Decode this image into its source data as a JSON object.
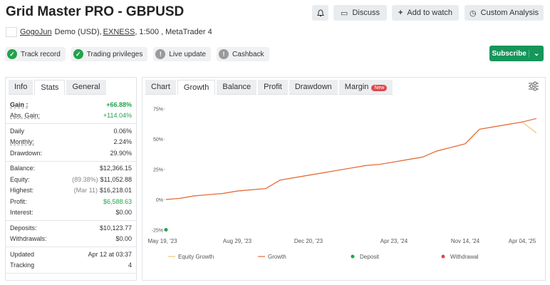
{
  "header": {
    "title": "Grid Master PRO - GBPUSD",
    "buttons": [
      "Discuss",
      "Add to watch",
      "Custom Analysis"
    ]
  },
  "account": {
    "owner": "GogoJun",
    "details_1": "Demo (USD),",
    "broker": "EXNESS",
    "details_2": ", 1:500 , MetaTrader 4"
  },
  "badges": [
    {
      "label": "Track record",
      "ok": true
    },
    {
      "label": "Trading privileges",
      "ok": true
    },
    {
      "label": "Live update",
      "ok": false
    },
    {
      "label": "Cashback",
      "ok": false
    }
  ],
  "subscribe": "Subscribe",
  "stats_tabs": {
    "tabs": [
      "Info",
      "Stats",
      "General"
    ],
    "active": 1
  },
  "stats": [
    [
      {
        "label": "Gain :",
        "value": "+66.88%",
        "color": "#22a34a"
      },
      {
        "label": "Abs. Gain:",
        "value": "+114.04%",
        "color": "#22a34a"
      }
    ],
    [
      {
        "label": "Daily",
        "value": "0.06%"
      },
      {
        "label": "Monthly:",
        "value": "2.24%"
      },
      {
        "label": "Drawdown:",
        "value": "29.90%"
      }
    ],
    [
      {
        "label": "Balance:",
        "value": "$12,366.15"
      },
      {
        "label": "Equity:",
        "note": "(89.38%)",
        "value": "$11,052.88"
      },
      {
        "label": "Highest:",
        "note": "(Mar 11)",
        "value": "$16,218.01"
      },
      {
        "label": "Profit:",
        "value": "$6,588.63",
        "color": "#22a34a"
      },
      {
        "label": "Interest:",
        "value": "$0.00"
      }
    ],
    [
      {
        "label": "Deposits:",
        "value": "$10,123.77"
      },
      {
        "label": "Withdrawals:",
        "value": "$0.00"
      }
    ],
    [
      {
        "label": "Updated",
        "value": "Apr 12 at 03:37"
      },
      {
        "label": "Tracking",
        "value": "4"
      }
    ]
  ],
  "chart_tabs": {
    "tabs": [
      "Chart",
      "Growth",
      "Balance",
      "Profit",
      "Drawdown",
      "Margin"
    ],
    "active": 1,
    "new_badge": "New"
  },
  "chart_data": {
    "type": "line",
    "categories": [
      "May 19, '23",
      null,
      null,
      null,
      null,
      "Aug 29, '23",
      null,
      null,
      null,
      null,
      "Dec 20, '23",
      null,
      null,
      null,
      null,
      null,
      "Apr 23, '24",
      null,
      null,
      null,
      null,
      "Nov 14, '24",
      null,
      null,
      null,
      "Apr 04, '25",
      null
    ],
    "series": [
      {
        "name": "Equity Growth",
        "color": "#f2c46d",
        "kind": "line",
        "values": [
          0,
          1,
          3,
          4,
          5,
          7,
          8,
          9,
          16,
          18,
          20,
          22,
          24,
          26,
          28,
          29,
          31,
          33,
          35,
          40,
          43,
          46,
          58,
          60,
          62,
          64,
          55
        ]
      },
      {
        "name": "Growth",
        "color": "#e4693c",
        "kind": "line",
        "values": [
          0,
          1,
          3,
          4,
          5,
          7,
          8,
          9,
          16,
          18,
          20,
          22,
          24,
          26,
          28,
          29,
          31,
          33,
          35,
          40,
          43,
          46,
          58,
          60,
          62,
          64,
          66.88
        ]
      },
      {
        "name": "Deposit",
        "color": "#1fa64a",
        "kind": "dot",
        "values": [
          -25,
          null,
          null,
          null,
          null,
          null,
          null,
          null,
          null,
          null,
          null,
          null,
          null,
          null,
          null,
          null,
          null,
          null,
          null,
          null,
          null,
          null,
          null,
          null,
          null,
          null,
          null
        ]
      },
      {
        "name": "Withdrawal",
        "color": "#e04646",
        "kind": "dot",
        "values": [
          null,
          null,
          null,
          null,
          null,
          null,
          null,
          null,
          null,
          null,
          null,
          null,
          null,
          null,
          null,
          null,
          null,
          null,
          null,
          null,
          null,
          null,
          null,
          null,
          null,
          null,
          null
        ]
      }
    ],
    "ylim": [
      -25,
      75
    ],
    "yticks": [
      {
        "value": -25,
        "label": "-25%"
      },
      {
        "value": 0,
        "label": "0%"
      },
      {
        "value": 25,
        "label": "25%"
      },
      {
        "value": 50,
        "label": "50%"
      },
      {
        "value": 75,
        "label": "75%"
      }
    ],
    "grid": false
  }
}
